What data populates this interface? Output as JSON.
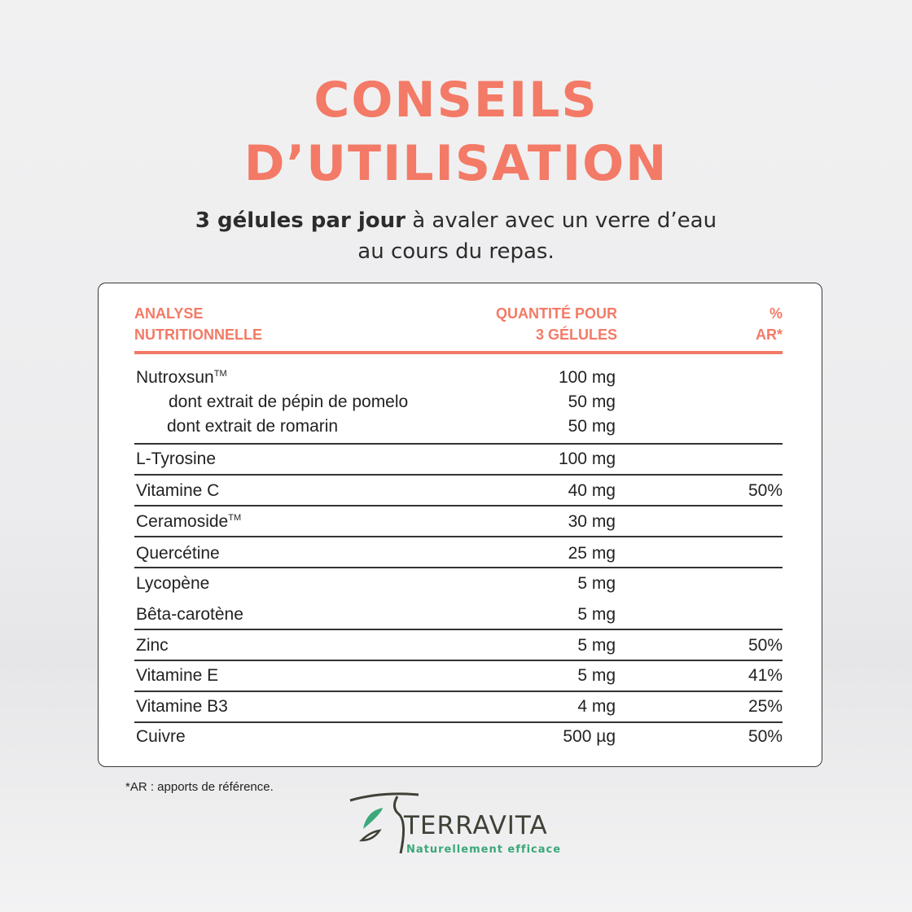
{
  "title": {
    "line1": "CONSEILS",
    "line2": "D’UTILISATION"
  },
  "subtitle": {
    "bold": "3 gélules par jour",
    "rest": " à avaler avec un verre d’eau",
    "line2": "au cours du repas."
  },
  "table": {
    "headers": {
      "name_l1": "ANALYSE",
      "name_l2": "NUTRITIONNELLE",
      "qty_l1": "QUANTITÉ POUR",
      "qty_l2": "3 GÉLULES",
      "ar_l1": "%",
      "ar_l2": "AR*"
    },
    "rows": [
      {
        "name": "Nutroxsun",
        "tm": "TM",
        "qty": "100 mg",
        "ar": ""
      },
      {
        "name": "dont extrait de pépin de pomelo",
        "qty": "50 mg",
        "ar": ""
      },
      {
        "name": "dont extrait de romarin",
        "qty": "50 mg",
        "ar": ""
      },
      {
        "name": "L-Tyrosine",
        "qty": "100 mg",
        "ar": ""
      },
      {
        "name": "Vitamine C",
        "qty": "40 mg",
        "ar": "50%"
      },
      {
        "name": "Ceramoside",
        "tm": "TM",
        "qty": "30 mg",
        "ar": ""
      },
      {
        "name": "Quercétine",
        "qty": "25 mg",
        "ar": ""
      },
      {
        "name": "Lycopène",
        "qty": "5 mg",
        "ar": ""
      },
      {
        "name": "Bêta-carotène",
        "qty": "5 mg",
        "ar": ""
      },
      {
        "name": "Zinc",
        "qty": "5 mg",
        "ar": "50%"
      },
      {
        "name": "Vitamine E",
        "qty": "5 mg",
        "ar": "41%"
      },
      {
        "name": "Vitamine B3",
        "qty": "4 mg",
        "ar": "25%"
      },
      {
        "name": "Cuivre",
        "qty": "500 µg",
        "ar": "50%"
      }
    ]
  },
  "footnote": "*AR : apports de référence.",
  "brand": {
    "name": "TERRAVITA",
    "tagline": "Naturellement efficace"
  },
  "colors": {
    "accent": "#f37a66",
    "brand_dark": "#3e4236",
    "brand_green": "#3aa87a"
  }
}
